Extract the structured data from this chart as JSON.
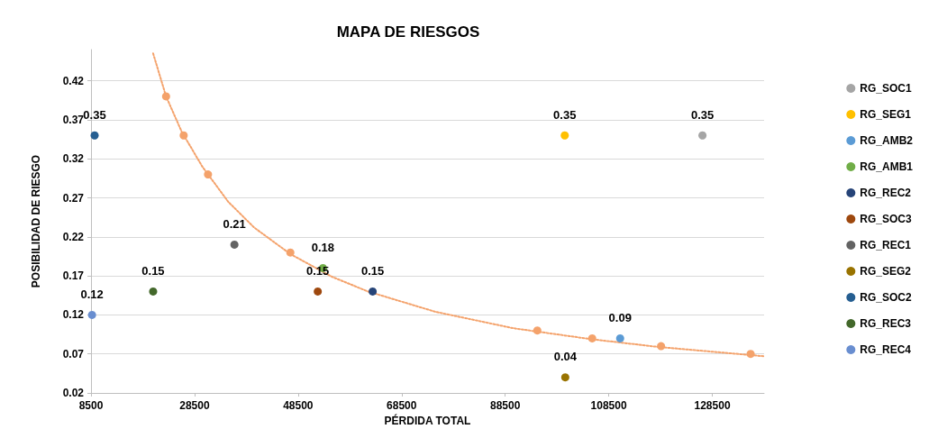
{
  "chart_data": {
    "type": "scatter",
    "title": "MAPA DE RIESGOS",
    "xlabel": "PÉRDIDA TOTAL",
    "ylabel": "POSIBILIDAD DE RIESGO",
    "xlim": [
      8500,
      138500
    ],
    "xticks": [
      8500,
      28500,
      48500,
      68500,
      88500,
      108500,
      128500
    ],
    "ylim": [
      0.02,
      0.46
    ],
    "yticks": [
      0.02,
      0.07,
      0.12,
      0.17,
      0.22,
      0.27,
      0.32,
      0.37,
      0.42
    ],
    "grid": "y",
    "legend": "right",
    "marker": "circle",
    "series": [
      {
        "type": "line",
        "color": "#f4a26b",
        "line_style": "dotted",
        "marker": "none",
        "x": [
          20500,
          23000,
          26000,
          30000,
          35000,
          40000,
          47000,
          55000,
          62000,
          75000,
          90000,
          105000,
          118000,
          138500
        ],
        "values": [
          0.455,
          0.4,
          0.355,
          0.31,
          0.265,
          0.232,
          0.198,
          0.169,
          0.15,
          0.124,
          0.103,
          0.089,
          0.079,
          0.067
        ]
      },
      {
        "color": "#f4a26b",
        "x": [
          23000,
          26400,
          31100,
          47000,
          94700,
          105300,
          118600,
          135900
        ],
        "values": [
          0.4,
          0.35,
          0.3,
          0.2,
          0.1,
          0.09,
          0.08,
          0.07
        ]
      },
      {
        "name": "RG_SOC1",
        "color": "#a5a5a5",
        "x": [
          126600
        ],
        "values": [
          0.35
        ],
        "value_labels": [
          "0.35"
        ]
      },
      {
        "name": "RG_SEG1",
        "color": "#ffc000",
        "x": [
          100000
        ],
        "values": [
          0.35
        ],
        "value_labels": [
          "0.35"
        ]
      },
      {
        "name": "RG_AMB2",
        "color": "#5b9bd5",
        "x": [
          110700
        ],
        "values": [
          0.09
        ],
        "value_labels": [
          "0.09"
        ]
      },
      {
        "name": "RG_AMB1",
        "color": "#70ad47",
        "x": [
          53300
        ],
        "values": [
          0.18
        ],
        "value_labels": [
          "0.18"
        ]
      },
      {
        "name": "RG_REC2",
        "color": "#264478",
        "x": [
          62900
        ],
        "values": [
          0.15
        ],
        "value_labels": [
          "0.15"
        ]
      },
      {
        "name": "RG_SOC3",
        "color": "#9e480e",
        "x": [
          52300
        ],
        "values": [
          0.15
        ],
        "value_labels": [
          "0.15"
        ]
      },
      {
        "name": "RG_REC1",
        "color": "#636363",
        "x": [
          36200
        ],
        "values": [
          0.21
        ],
        "value_labels": [
          "0.21"
        ]
      },
      {
        "name": "RG_SEG2",
        "color": "#997300",
        "x": [
          100100
        ],
        "values": [
          0.04
        ],
        "value_labels": [
          "0.04"
        ]
      },
      {
        "name": "RG_SOC2",
        "color": "#255e91",
        "x": [
          9200
        ],
        "values": [
          0.35
        ],
        "value_labels": [
          "0.35"
        ]
      },
      {
        "name": "RG_REC3",
        "color": "#43682b",
        "x": [
          20500
        ],
        "values": [
          0.15
        ],
        "value_labels": [
          "0.15"
        ]
      },
      {
        "name": "RG_REC4",
        "color": "#698ed0",
        "x": [
          8700
        ],
        "values": [
          0.12
        ],
        "value_labels": [
          "0.12"
        ]
      }
    ]
  }
}
